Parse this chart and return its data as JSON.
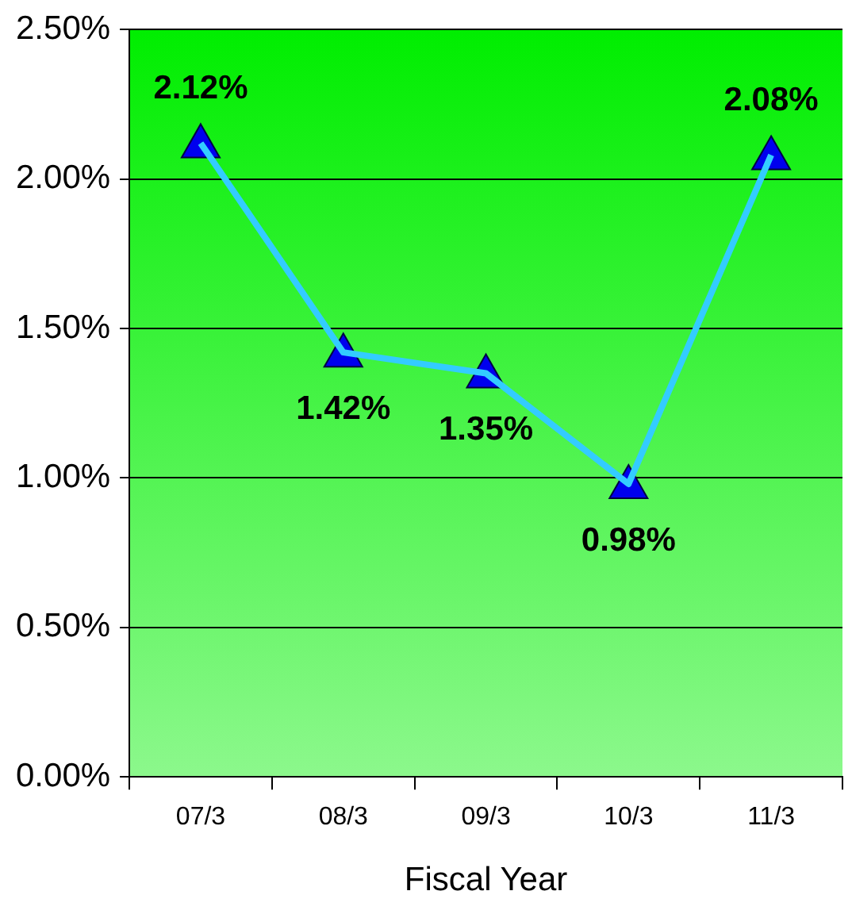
{
  "chart_data": {
    "type": "line",
    "xlabel": "Fiscal Year",
    "categories": [
      "07/3",
      "08/3",
      "09/3",
      "10/3",
      "11/3"
    ],
    "series": [
      {
        "color": "#33ccff",
        "values": [
          2.12,
          1.42,
          1.35,
          0.98,
          2.08
        ],
        "value_labels": [
          "2.12%",
          "1.42%",
          "1.35%",
          "0.98%",
          "2.08%"
        ]
      }
    ],
    "ylim": [
      0,
      2.5
    ],
    "yticks": [
      {
        "value": 0,
        "label": "0.00%"
      },
      {
        "value": 0.5,
        "label": "0.50%"
      },
      {
        "value": 1,
        "label": "1.00%"
      },
      {
        "value": 1.5,
        "label": "1.50%"
      },
      {
        "value": 2,
        "label": "2.00%"
      },
      {
        "value": 2.5,
        "label": "2.50%"
      }
    ],
    "grid": "y",
    "legend": false,
    "marker": "triangle",
    "line_style": "solid"
  }
}
